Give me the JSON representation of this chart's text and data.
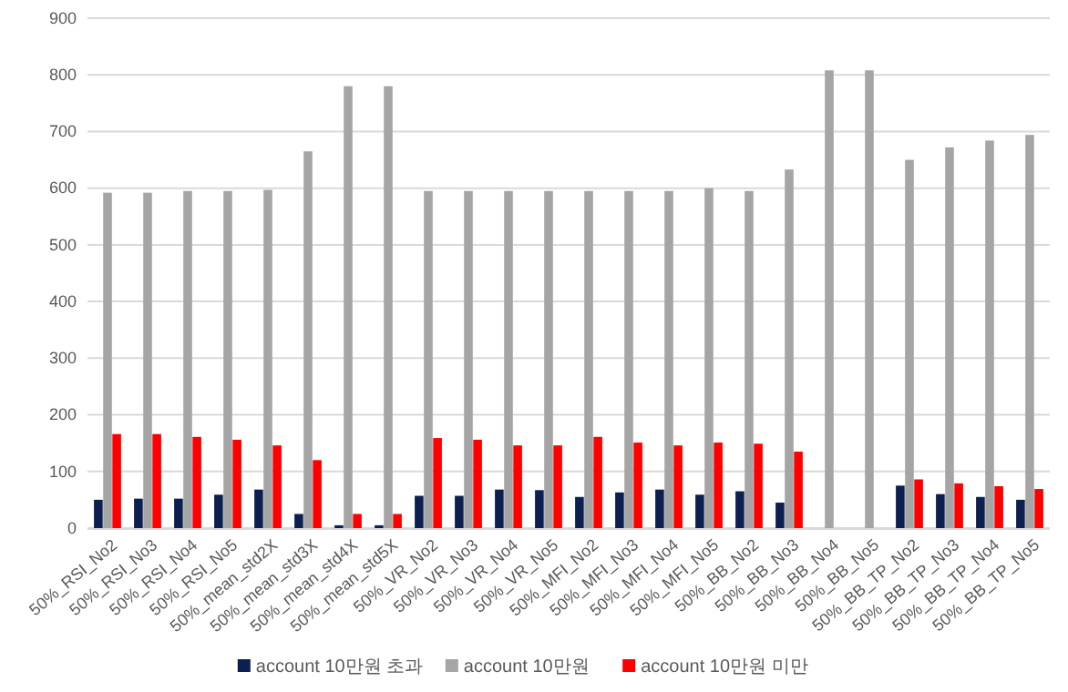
{
  "chart_data": {
    "type": "bar",
    "categories": [
      "50%_RSI_No2",
      "50%_RSI_No3",
      "50%_RSI_No4",
      "50%_RSI_No5",
      "50%_mean_std2X",
      "50%_mean_std3X",
      "50%_mean_std4X",
      "50%_mean_std5X",
      "50%_VR_No2",
      "50%_VR_No3",
      "50%_VR_No4",
      "50%_VR_No5",
      "50%_MFI_No2",
      "50%_MFI_No3",
      "50%_MFI_No4",
      "50%_MFI_No5",
      "50%_BB_No2",
      "50%_BB_No3",
      "50%_BB_No4",
      "50%_BB_No5",
      "50%_BB_TP_No2",
      "50%_BB_TP_No3",
      "50%_BB_TP_No4",
      "50%_BB_TP_No5"
    ],
    "series": [
      {
        "name": "account 10만원 초과",
        "color": "#0c1f4f",
        "values": [
          50,
          52,
          52,
          59,
          68,
          25,
          5,
          5,
          57,
          57,
          68,
          67,
          55,
          63,
          68,
          59,
          65,
          45,
          0,
          0,
          75,
          60,
          55,
          50
        ]
      },
      {
        "name": "account 10만원",
        "color": "#a5a5a5",
        "values": [
          592,
          592,
          595,
          595,
          597,
          665,
          780,
          780,
          595,
          595,
          595,
          595,
          595,
          595,
          595,
          600,
          595,
          633,
          808,
          808,
          650,
          672,
          684,
          694
        ]
      },
      {
        "name": "account 10만원 미만",
        "color": "#ff0000",
        "values": [
          166,
          166,
          161,
          156,
          146,
          120,
          25,
          25,
          159,
          156,
          146,
          146,
          161,
          151,
          146,
          151,
          149,
          135,
          0,
          0,
          86,
          79,
          74,
          69
        ]
      }
    ],
    "ylim": [
      0,
      900
    ],
    "yticks": [
      0,
      100,
      200,
      300,
      400,
      500,
      600,
      700,
      800,
      900
    ],
    "grid": "y",
    "legend": "bottom"
  }
}
